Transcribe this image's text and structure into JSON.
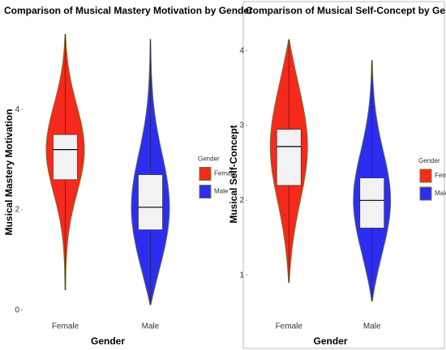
{
  "chart_data": [
    {
      "type": "violin",
      "title": "Comparison of Musical Mastery Motivation by Gender",
      "xlabel": "Gender",
      "ylabel": "Musical Mastery Motivation",
      "legend_title": "Gender",
      "categories": [
        "Female",
        "Male"
      ],
      "series": [
        {
          "name": "Female",
          "color": "#f5291c",
          "min": 0.4,
          "q1": 2.6,
          "median": 3.2,
          "q3": 3.5,
          "max": 5.5
        },
        {
          "name": "Male",
          "color": "#2d2df2",
          "min": 0.1,
          "q1": 1.6,
          "median": 2.05,
          "q3": 2.7,
          "max": 5.4
        }
      ],
      "ylim": [
        -0.2,
        5.7
      ],
      "yticks": [
        0,
        2,
        4
      ]
    },
    {
      "type": "violin",
      "title": "Comparison of Musical Self-Concept by Gender",
      "xlabel": "Gender",
      "ylabel": "Musical Self-Concept",
      "legend_title": "Gender",
      "categories": [
        "Female",
        "Male"
      ],
      "series": [
        {
          "name": "Female",
          "color": "#f5291c",
          "min": 0.9,
          "q1": 2.2,
          "median": 2.72,
          "q3": 2.95,
          "max": 4.15
        },
        {
          "name": "Male",
          "color": "#2d2df2",
          "min": 0.65,
          "q1": 1.63,
          "median": 2.0,
          "q3": 2.3,
          "max": 3.87
        }
      ],
      "ylim": [
        0.4,
        4.3
      ],
      "yticks": [
        1,
        2,
        3,
        4
      ]
    }
  ]
}
